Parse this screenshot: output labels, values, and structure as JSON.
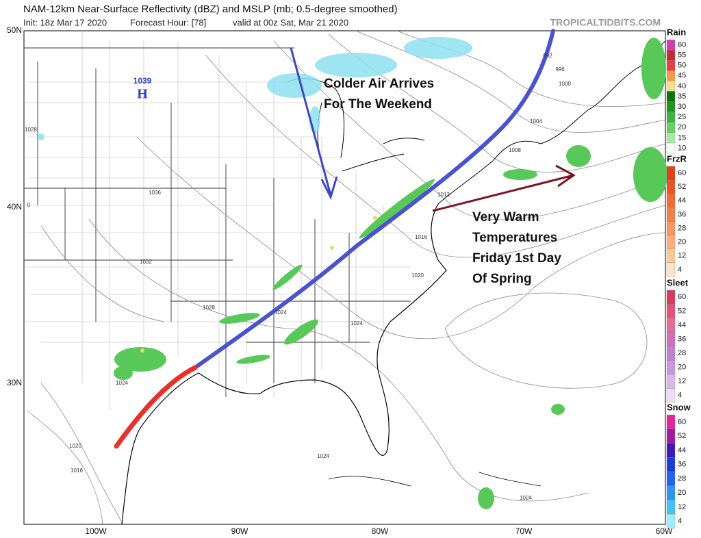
{
  "header": {
    "title": "NAM-12km Near-Surface Reflectivity (dBZ) and MSLP (mb; 0.5-degree smoothed)",
    "init": "Init: 18z Mar 17 2020",
    "forecast_hour": "Forecast Hour: [78]",
    "valid": "valid at 00z Sat, Mar 21 2020",
    "watermark": "TROPICALTIDBITS.COM"
  },
  "map": {
    "lat_labels": [
      "50N",
      "40N",
      "30N"
    ],
    "lon_labels": [
      "100W",
      "90W",
      "80W",
      "70W",
      "60W"
    ],
    "high": {
      "value": "1039",
      "symbol": "H"
    },
    "isobar_labels": [
      "992",
      "996",
      "1000",
      "1004",
      "1008",
      "1012",
      "1016",
      "1020",
      "1024",
      "1024",
      "1028",
      "1032",
      "1036",
      "1028",
      "1024",
      "1020",
      "1016",
      "1024",
      "1024",
      "0"
    ]
  },
  "annotations": {
    "colder": [
      "Colder Air Arrives",
      "For The Weekend"
    ],
    "warm": [
      "Very Warm",
      "Temperatures",
      "Friday 1st Day",
      "Of Spring"
    ]
  },
  "legend": [
    {
      "title": "Rain",
      "ticks": [
        "60",
        "55",
        "50",
        "45",
        "40",
        "35",
        "30",
        "25",
        "20",
        "15",
        "10"
      ],
      "colors": [
        "#d43cb4",
        "#c8283c",
        "#e84040",
        "#f59a50",
        "#f2e08a",
        "#0e720e",
        "#1e961e",
        "#3cb43c",
        "#66d266",
        "#a4eca4",
        "#f4fff4"
      ]
    },
    {
      "title": "FrzR",
      "ticks": [
        "60",
        "52",
        "44",
        "36",
        "28",
        "20",
        "12",
        "4"
      ],
      "colors": [
        "#e0401c",
        "#e85428",
        "#ee6a38",
        "#f2804a",
        "#f5985e",
        "#f8b078",
        "#fbc898",
        "#fde2c4"
      ]
    },
    {
      "title": "Sleet",
      "ticks": [
        "60",
        "52",
        "44",
        "36",
        "28",
        "20",
        "12",
        "4"
      ],
      "colors": [
        "#d83c5c",
        "#e05478",
        "#e06c98",
        "#d070b8",
        "#c080d0",
        "#c898dc",
        "#d8b8e8",
        "#ecdcf4"
      ]
    },
    {
      "title": "Snow",
      "ticks": [
        "60",
        "52",
        "44",
        "36",
        "28",
        "20",
        "12",
        "4"
      ],
      "colors": [
        "#e0289c",
        "#a01c9c",
        "#3c1cb4",
        "#1c3cd8",
        "#2064e8",
        "#2c94f0",
        "#40c4f4",
        "#a0ecfc"
      ]
    }
  ]
}
